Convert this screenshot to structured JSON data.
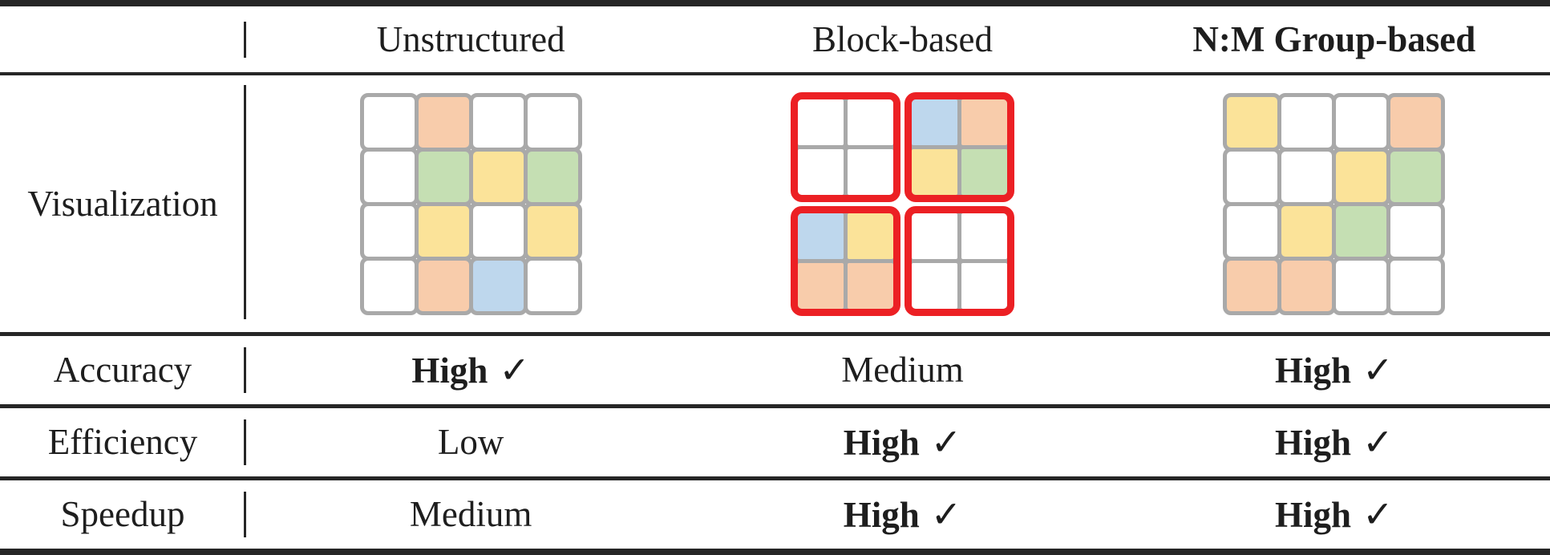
{
  "header": {
    "columns": [
      {
        "label": "Unstructured",
        "bold": false
      },
      {
        "label": "Block-based",
        "bold": false
      },
      {
        "label": "N:M Group-based",
        "bold": true
      }
    ]
  },
  "rows": {
    "visualization": {
      "label": "Visualization",
      "unstructured_grid": [
        [
          "w",
          "o",
          "w",
          "w"
        ],
        [
          "w",
          "g",
          "y",
          "g"
        ],
        [
          "w",
          "y",
          "w",
          "y"
        ],
        [
          "w",
          "o",
          "b",
          "w"
        ]
      ],
      "block_grid_blocks": [
        [
          [
            "w",
            "w"
          ],
          [
            "w",
            "w"
          ]
        ],
        [
          [
            "b",
            "o"
          ],
          [
            "y",
            "g"
          ]
        ],
        [
          [
            "b",
            "y"
          ],
          [
            "o",
            "o"
          ]
        ],
        [
          [
            "w",
            "w"
          ],
          [
            "w",
            "w"
          ]
        ]
      ],
      "nm_grid": [
        [
          "y",
          "w",
          "w",
          "o"
        ],
        [
          "w",
          "w",
          "y",
          "g"
        ],
        [
          "w",
          "y",
          "g",
          "w"
        ],
        [
          "o",
          "o",
          "w",
          "w"
        ]
      ]
    },
    "accuracy": {
      "label": "Accuracy",
      "values": [
        {
          "text": "High",
          "check": "✓",
          "bold": true
        },
        {
          "text": "Medium",
          "check": "",
          "bold": false
        },
        {
          "text": "High",
          "check": "✓",
          "bold": true
        }
      ]
    },
    "efficiency": {
      "label": "Efficiency",
      "values": [
        {
          "text": "Low",
          "check": "",
          "bold": false
        },
        {
          "text": "High",
          "check": "✓",
          "bold": true
        },
        {
          "text": "High",
          "check": "✓",
          "bold": true
        }
      ]
    },
    "speedup": {
      "label": "Speedup",
      "values": [
        {
          "text": "Medium",
          "check": "",
          "bold": false
        },
        {
          "text": "High",
          "check": "✓",
          "bold": true
        },
        {
          "text": "High",
          "check": "✓",
          "bold": true
        }
      ]
    }
  },
  "cell_colors": {
    "w": "#FFFFFF",
    "o": "#F8CCAB",
    "y": "#FBE399",
    "g": "#C5DFB3",
    "b": "#BED7ED"
  },
  "accent_colors": {
    "grid_border_gray": "#A9A9A9",
    "block_outline_red": "#EC2024",
    "rule_black": "#262626"
  },
  "check_symbol": "✓"
}
